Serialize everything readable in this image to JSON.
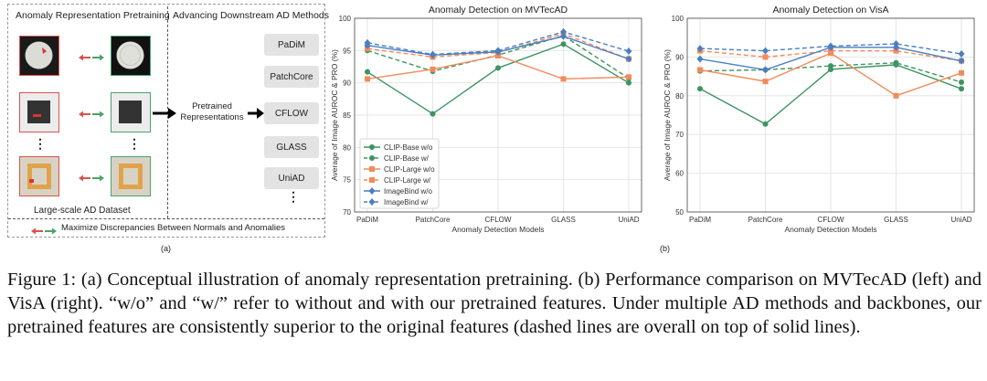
{
  "panel_a": {
    "header_left": "Anomaly Representation Pretraining",
    "header_right": "Advancing Downstream  AD Methods",
    "dataset_label": "Large-scale AD Dataset",
    "pretrained_label": "Pretrained\nRepresentations",
    "methods": [
      "PaDiM",
      "PatchCore",
      "CFLOW",
      "GLASS",
      "UniAD"
    ],
    "footer": "Maximize Discrepancies Between Normals and Anomalies",
    "ellipsis": "⋮",
    "sub_label": "(a)"
  },
  "panel_b_label": "(b)",
  "chart_data": [
    {
      "type": "line",
      "title": "Anomaly Detection on MVTecAD",
      "xlabel": "Anomaly Detection Models",
      "ylabel": "Average of Image AUROC & PRO (%)",
      "categories": [
        "PaDiM",
        "PatchCore",
        "CFLOW",
        "GLASS",
        "UniAD"
      ],
      "ylim": [
        70,
        100
      ],
      "yticks": [
        70,
        75,
        80,
        85,
        90,
        95,
        100
      ],
      "grid": true,
      "legend": "lower-left",
      "series": [
        {
          "name": "CLIP-Base w/o",
          "color": "#3d9460",
          "dash": false,
          "marker": "circle",
          "values": [
            91.7,
            85.2,
            92.3,
            96.0,
            90.0
          ]
        },
        {
          "name": "CLIP-Base w/",
          "color": "#3d9460",
          "dash": true,
          "marker": "circle",
          "values": [
            95.0,
            91.8,
            94.3,
            97.3,
            90.7
          ]
        },
        {
          "name": "CLIP-Large w/o",
          "color": "#f28b5b",
          "dash": false,
          "marker": "square",
          "values": [
            90.6,
            92.1,
            94.2,
            90.6,
            90.9
          ]
        },
        {
          "name": "CLIP-Large w/",
          "color": "#f28b5b",
          "dash": true,
          "marker": "square",
          "values": [
            95.3,
            94.0,
            94.7,
            97.6,
            93.7
          ]
        },
        {
          "name": "ImageBind w/o",
          "color": "#4a7fc1",
          "dash": false,
          "marker": "diamond",
          "values": [
            95.8,
            94.3,
            94.8,
            97.2,
            93.7
          ]
        },
        {
          "name": "ImageBind w/",
          "color": "#4a7fc1",
          "dash": true,
          "marker": "diamond",
          "values": [
            96.2,
            94.4,
            95.0,
            97.9,
            94.9
          ]
        }
      ]
    },
    {
      "type": "line",
      "title": "Anomaly Detection on VisA",
      "xlabel": "Anomaly Detection Models",
      "ylabel": "Average of Image AUROC & PRO (%)",
      "categories": [
        "PaDiM",
        "PatchCore",
        "CFLOW",
        "GLASS",
        "UniAD"
      ],
      "ylim": [
        50,
        100
      ],
      "yticks": [
        50,
        60,
        70,
        80,
        90,
        100
      ],
      "grid": true,
      "legend": "none",
      "series": [
        {
          "name": "CLIP-Base w/o",
          "color": "#3d9460",
          "dash": false,
          "marker": "circle",
          "values": [
            81.8,
            72.7,
            86.8,
            88.0,
            81.8
          ]
        },
        {
          "name": "CLIP-Base w/",
          "color": "#3d9460",
          "dash": true,
          "marker": "circle",
          "values": [
            86.4,
            86.7,
            87.7,
            88.5,
            83.5
          ]
        },
        {
          "name": "CLIP-Large w/o",
          "color": "#f28b5b",
          "dash": false,
          "marker": "square",
          "values": [
            86.7,
            83.7,
            91.0,
            80.0,
            85.9
          ]
        },
        {
          "name": "CLIP-Large w/",
          "color": "#f28b5b",
          "dash": true,
          "marker": "square",
          "values": [
            91.6,
            90.0,
            91.6,
            91.6,
            89.0
          ]
        },
        {
          "name": "ImageBind w/o",
          "color": "#4a7fc1",
          "dash": false,
          "marker": "diamond",
          "values": [
            89.5,
            86.7,
            92.5,
            92.5,
            89.0
          ]
        },
        {
          "name": "ImageBind w/",
          "color": "#4a7fc1",
          "dash": true,
          "marker": "diamond",
          "values": [
            92.2,
            91.6,
            92.8,
            93.4,
            90.8
          ]
        }
      ]
    }
  ],
  "caption": "Figure 1: (a) Conceptual illustration of anomaly representation pretraining. (b) Performance comparison on MVTecAD (left) and VisA (right). “w/o” and “w/” refer to without and with our pretrained features. Under multiple AD methods and backbones, our pretrained features are consistently superior to the original features (dashed lines are overall on top of solid lines)."
}
